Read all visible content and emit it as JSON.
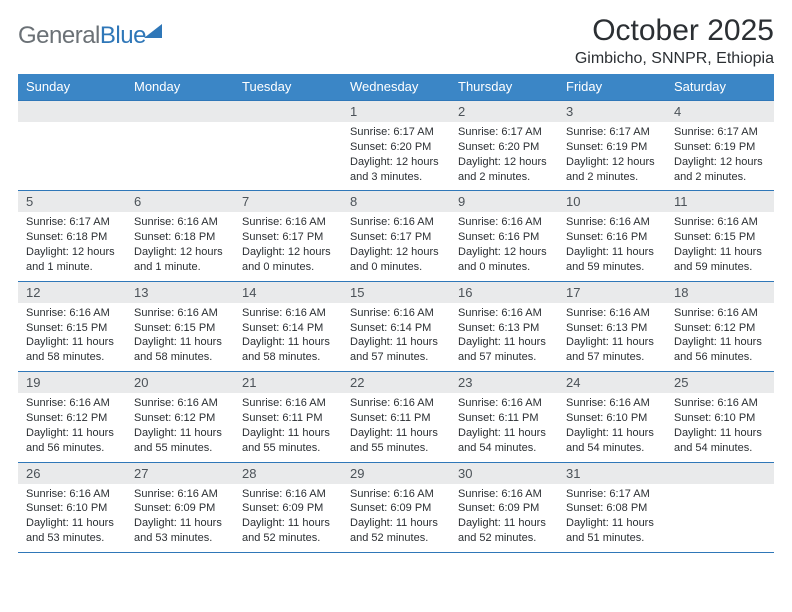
{
  "brand": {
    "name_part1": "General",
    "name_part2": "Blue"
  },
  "title": "October 2025",
  "subtitle": "Gimbicho, SNNPR, Ethiopia",
  "day_labels": [
    "Sunday",
    "Monday",
    "Tuesday",
    "Wednesday",
    "Thursday",
    "Friday",
    "Saturday"
  ],
  "colors": {
    "header_bg": "#3b86c6",
    "header_text": "#ffffff",
    "rule": "#2f77b8",
    "daynum_bg": "#e9eaeb",
    "text": "#2b2f33",
    "logo_gray": "#6b7176",
    "logo_blue": "#2f77b8"
  },
  "weeks": [
    [
      {
        "n": "",
        "sunrise": "",
        "sunset": "",
        "daylight": ""
      },
      {
        "n": "",
        "sunrise": "",
        "sunset": "",
        "daylight": ""
      },
      {
        "n": "",
        "sunrise": "",
        "sunset": "",
        "daylight": ""
      },
      {
        "n": "1",
        "sunrise": "Sunrise: 6:17 AM",
        "sunset": "Sunset: 6:20 PM",
        "daylight": "Daylight: 12 hours and 3 minutes."
      },
      {
        "n": "2",
        "sunrise": "Sunrise: 6:17 AM",
        "sunset": "Sunset: 6:20 PM",
        "daylight": "Daylight: 12 hours and 2 minutes."
      },
      {
        "n": "3",
        "sunrise": "Sunrise: 6:17 AM",
        "sunset": "Sunset: 6:19 PM",
        "daylight": "Daylight: 12 hours and 2 minutes."
      },
      {
        "n": "4",
        "sunrise": "Sunrise: 6:17 AM",
        "sunset": "Sunset: 6:19 PM",
        "daylight": "Daylight: 12 hours and 2 minutes."
      }
    ],
    [
      {
        "n": "5",
        "sunrise": "Sunrise: 6:17 AM",
        "sunset": "Sunset: 6:18 PM",
        "daylight": "Daylight: 12 hours and 1 minute."
      },
      {
        "n": "6",
        "sunrise": "Sunrise: 6:16 AM",
        "sunset": "Sunset: 6:18 PM",
        "daylight": "Daylight: 12 hours and 1 minute."
      },
      {
        "n": "7",
        "sunrise": "Sunrise: 6:16 AM",
        "sunset": "Sunset: 6:17 PM",
        "daylight": "Daylight: 12 hours and 0 minutes."
      },
      {
        "n": "8",
        "sunrise": "Sunrise: 6:16 AM",
        "sunset": "Sunset: 6:17 PM",
        "daylight": "Daylight: 12 hours and 0 minutes."
      },
      {
        "n": "9",
        "sunrise": "Sunrise: 6:16 AM",
        "sunset": "Sunset: 6:16 PM",
        "daylight": "Daylight: 12 hours and 0 minutes."
      },
      {
        "n": "10",
        "sunrise": "Sunrise: 6:16 AM",
        "sunset": "Sunset: 6:16 PM",
        "daylight": "Daylight: 11 hours and 59 minutes."
      },
      {
        "n": "11",
        "sunrise": "Sunrise: 6:16 AM",
        "sunset": "Sunset: 6:15 PM",
        "daylight": "Daylight: 11 hours and 59 minutes."
      }
    ],
    [
      {
        "n": "12",
        "sunrise": "Sunrise: 6:16 AM",
        "sunset": "Sunset: 6:15 PM",
        "daylight": "Daylight: 11 hours and 58 minutes."
      },
      {
        "n": "13",
        "sunrise": "Sunrise: 6:16 AM",
        "sunset": "Sunset: 6:15 PM",
        "daylight": "Daylight: 11 hours and 58 minutes."
      },
      {
        "n": "14",
        "sunrise": "Sunrise: 6:16 AM",
        "sunset": "Sunset: 6:14 PM",
        "daylight": "Daylight: 11 hours and 58 minutes."
      },
      {
        "n": "15",
        "sunrise": "Sunrise: 6:16 AM",
        "sunset": "Sunset: 6:14 PM",
        "daylight": "Daylight: 11 hours and 57 minutes."
      },
      {
        "n": "16",
        "sunrise": "Sunrise: 6:16 AM",
        "sunset": "Sunset: 6:13 PM",
        "daylight": "Daylight: 11 hours and 57 minutes."
      },
      {
        "n": "17",
        "sunrise": "Sunrise: 6:16 AM",
        "sunset": "Sunset: 6:13 PM",
        "daylight": "Daylight: 11 hours and 57 minutes."
      },
      {
        "n": "18",
        "sunrise": "Sunrise: 6:16 AM",
        "sunset": "Sunset: 6:12 PM",
        "daylight": "Daylight: 11 hours and 56 minutes."
      }
    ],
    [
      {
        "n": "19",
        "sunrise": "Sunrise: 6:16 AM",
        "sunset": "Sunset: 6:12 PM",
        "daylight": "Daylight: 11 hours and 56 minutes."
      },
      {
        "n": "20",
        "sunrise": "Sunrise: 6:16 AM",
        "sunset": "Sunset: 6:12 PM",
        "daylight": "Daylight: 11 hours and 55 minutes."
      },
      {
        "n": "21",
        "sunrise": "Sunrise: 6:16 AM",
        "sunset": "Sunset: 6:11 PM",
        "daylight": "Daylight: 11 hours and 55 minutes."
      },
      {
        "n": "22",
        "sunrise": "Sunrise: 6:16 AM",
        "sunset": "Sunset: 6:11 PM",
        "daylight": "Daylight: 11 hours and 55 minutes."
      },
      {
        "n": "23",
        "sunrise": "Sunrise: 6:16 AM",
        "sunset": "Sunset: 6:11 PM",
        "daylight": "Daylight: 11 hours and 54 minutes."
      },
      {
        "n": "24",
        "sunrise": "Sunrise: 6:16 AM",
        "sunset": "Sunset: 6:10 PM",
        "daylight": "Daylight: 11 hours and 54 minutes."
      },
      {
        "n": "25",
        "sunrise": "Sunrise: 6:16 AM",
        "sunset": "Sunset: 6:10 PM",
        "daylight": "Daylight: 11 hours and 54 minutes."
      }
    ],
    [
      {
        "n": "26",
        "sunrise": "Sunrise: 6:16 AM",
        "sunset": "Sunset: 6:10 PM",
        "daylight": "Daylight: 11 hours and 53 minutes."
      },
      {
        "n": "27",
        "sunrise": "Sunrise: 6:16 AM",
        "sunset": "Sunset: 6:09 PM",
        "daylight": "Daylight: 11 hours and 53 minutes."
      },
      {
        "n": "28",
        "sunrise": "Sunrise: 6:16 AM",
        "sunset": "Sunset: 6:09 PM",
        "daylight": "Daylight: 11 hours and 52 minutes."
      },
      {
        "n": "29",
        "sunrise": "Sunrise: 6:16 AM",
        "sunset": "Sunset: 6:09 PM",
        "daylight": "Daylight: 11 hours and 52 minutes."
      },
      {
        "n": "30",
        "sunrise": "Sunrise: 6:16 AM",
        "sunset": "Sunset: 6:09 PM",
        "daylight": "Daylight: 11 hours and 52 minutes."
      },
      {
        "n": "31",
        "sunrise": "Sunrise: 6:17 AM",
        "sunset": "Sunset: 6:08 PM",
        "daylight": "Daylight: 11 hours and 51 minutes."
      },
      {
        "n": "",
        "sunrise": "",
        "sunset": "",
        "daylight": ""
      }
    ]
  ]
}
